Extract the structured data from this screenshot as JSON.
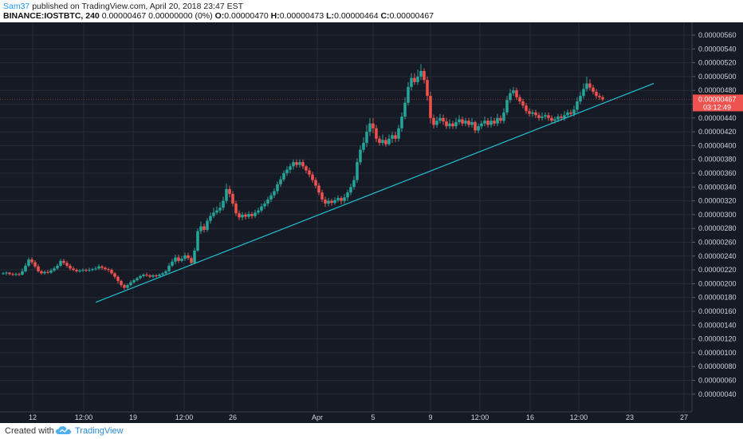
{
  "header": {
    "author": "Sam37",
    "published_text": "published on TradingView.com, April 20, 2018 23:47 EST",
    "symbol": "BINANCE:IOSTBTC, 240",
    "quote_text": "0.00000467 0.00000000 (0%)",
    "ohlc": {
      "o_label": "O:",
      "o": "0.00000470",
      "h_label": "H:",
      "h": "0.00000473",
      "l_label": "L:",
      "l": "0.00000464",
      "c_label": "C:",
      "c": "0.00000467"
    }
  },
  "footer": {
    "created_with": "Created with",
    "brand": "TradingView"
  },
  "colors": {
    "background": "#161a25",
    "up": "#26a69a",
    "down": "#ef5350",
    "trendline": "#22c4d4",
    "grid": "#252a36",
    "axis_text": "#d1d4dc",
    "price_tag": "#ef5350"
  },
  "chart_data": {
    "type": "candlestick",
    "title": "",
    "y_axis": {
      "ticks": [
        "0.00000560",
        "0.00000540",
        "0.00000520",
        "0.00000500",
        "0.00000480",
        "0.00000460",
        "0.00000440",
        "0.00000420",
        "0.00000400",
        "0.00000380",
        "0.00000360",
        "0.00000340",
        "0.00000320",
        "0.00000300",
        "0.00000280",
        "0.00000260",
        "0.00000240",
        "0.00000220",
        "0.00000200",
        "0.00000180",
        "0.00000160",
        "0.00000140",
        "0.00000120",
        "0.00000100",
        "0.00000080",
        "0.00000060",
        "0.00000040"
      ],
      "ylim": [
        3e-07,
        5.7e-06
      ]
    },
    "x_axis": {
      "ticks": [
        {
          "label": "12",
          "x": 41
        },
        {
          "label": "12:00",
          "x": 105
        },
        {
          "label": "19",
          "x": 167
        },
        {
          "label": "12:00",
          "x": 231
        },
        {
          "label": "26",
          "x": 292
        },
        {
          "label": "Apr",
          "x": 398
        },
        {
          "label": "5",
          "x": 468
        },
        {
          "label": "9",
          "x": 540
        },
        {
          "label": "12:00",
          "x": 602
        },
        {
          "label": "16",
          "x": 665
        },
        {
          "label": "12:00",
          "x": 726
        },
        {
          "label": "23",
          "x": 790
        },
        {
          "label": "27",
          "x": 858
        }
      ]
    },
    "last_price": {
      "label": "0.00000467",
      "value": 4.67e-06,
      "countdown": "03:12:49"
    },
    "candle_width": 3.5,
    "candles": [
      [
        4,
        215,
        215,
        217,
        213
      ],
      [
        8,
        215,
        216,
        218,
        212
      ],
      [
        12,
        216,
        214,
        217,
        212
      ],
      [
        16,
        214,
        213,
        216,
        211
      ],
      [
        20,
        213,
        214,
        216,
        211
      ],
      [
        24,
        214,
        213,
        216,
        211
      ],
      [
        28,
        213,
        218,
        222,
        212
      ],
      [
        32,
        218,
        226,
        230,
        216
      ],
      [
        36,
        226,
        235,
        238,
        224
      ],
      [
        40,
        235,
        231,
        238,
        228
      ],
      [
        44,
        231,
        225,
        234,
        222
      ],
      [
        48,
        225,
        218,
        228,
        216
      ],
      [
        52,
        218,
        215,
        220,
        213
      ],
      [
        56,
        215,
        217,
        219,
        213
      ],
      [
        60,
        217,
        216,
        220,
        214
      ],
      [
        64,
        216,
        219,
        222,
        214
      ],
      [
        68,
        219,
        222,
        225,
        217
      ],
      [
        72,
        222,
        226,
        229,
        220
      ],
      [
        76,
        226,
        233,
        236,
        224
      ],
      [
        80,
        233,
        230,
        236,
        227
      ],
      [
        84,
        230,
        226,
        233,
        223
      ],
      [
        88,
        226,
        222,
        229,
        219
      ],
      [
        92,
        222,
        220,
        225,
        218
      ],
      [
        96,
        220,
        218,
        222,
        216
      ],
      [
        100,
        218,
        219,
        221,
        216
      ],
      [
        104,
        219,
        220,
        222,
        217
      ],
      [
        108,
        220,
        219,
        222,
        217
      ],
      [
        112,
        219,
        220,
        223,
        217
      ],
      [
        116,
        220,
        221,
        223,
        218
      ],
      [
        120,
        221,
        222,
        225,
        219
      ],
      [
        124,
        222,
        225,
        228,
        220
      ],
      [
        128,
        225,
        223,
        227,
        220
      ],
      [
        132,
        223,
        221,
        225,
        219
      ],
      [
        136,
        221,
        220,
        223,
        217
      ],
      [
        140,
        220,
        215,
        222,
        213
      ],
      [
        144,
        215,
        210,
        217,
        207
      ],
      [
        148,
        210,
        204,
        212,
        200
      ],
      [
        152,
        204,
        198,
        206,
        195
      ],
      [
        156,
        198,
        194,
        200,
        191
      ],
      [
        160,
        194,
        198,
        200,
        192
      ],
      [
        164,
        198,
        202,
        205,
        196
      ],
      [
        168,
        202,
        205,
        207,
        200
      ],
      [
        172,
        205,
        208,
        210,
        203
      ],
      [
        176,
        208,
        211,
        213,
        206
      ],
      [
        180,
        211,
        213,
        215,
        209
      ],
      [
        184,
        213,
        212,
        216,
        210
      ],
      [
        188,
        212,
        210,
        214,
        208
      ],
      [
        192,
        210,
        212,
        214,
        208
      ],
      [
        196,
        212,
        211,
        214,
        209
      ],
      [
        200,
        211,
        213,
        215,
        210
      ],
      [
        204,
        213,
        215,
        217,
        211
      ],
      [
        208,
        215,
        218,
        220,
        213
      ],
      [
        212,
        218,
        226,
        230,
        216
      ],
      [
        216,
        226,
        232,
        236,
        224
      ],
      [
        220,
        232,
        238,
        242,
        228
      ],
      [
        224,
        238,
        233,
        242,
        230
      ],
      [
        228,
        233,
        236,
        240,
        231
      ],
      [
        232,
        236,
        241,
        245,
        233
      ],
      [
        236,
        241,
        237,
        245,
        234
      ],
      [
        240,
        237,
        230,
        240,
        226
      ],
      [
        244,
        230,
        248,
        252,
        228
      ],
      [
        248,
        248,
        276,
        280,
        246
      ],
      [
        252,
        276,
        283,
        290,
        272
      ],
      [
        256,
        283,
        278,
        287,
        274
      ],
      [
        260,
        278,
        291,
        295,
        275
      ],
      [
        264,
        291,
        298,
        303,
        287
      ],
      [
        268,
        298,
        303,
        310,
        295
      ],
      [
        272,
        303,
        306,
        312,
        300
      ],
      [
        276,
        306,
        310,
        318,
        302
      ],
      [
        280,
        310,
        320,
        326,
        306
      ],
      [
        284,
        320,
        337,
        345,
        316
      ],
      [
        288,
        337,
        330,
        342,
        325
      ],
      [
        292,
        330,
        316,
        334,
        312
      ],
      [
        296,
        316,
        302,
        320,
        298
      ],
      [
        300,
        302,
        296,
        306,
        292
      ],
      [
        304,
        296,
        300,
        304,
        292
      ],
      [
        308,
        300,
        297,
        303,
        293
      ],
      [
        312,
        297,
        301,
        305,
        294
      ],
      [
        316,
        301,
        298,
        304,
        294
      ],
      [
        320,
        298,
        303,
        307,
        295
      ],
      [
        324,
        303,
        306,
        310,
        300
      ],
      [
        328,
        306,
        312,
        316,
        303
      ],
      [
        332,
        312,
        316,
        320,
        308
      ],
      [
        336,
        316,
        322,
        326,
        312
      ],
      [
        340,
        322,
        328,
        332,
        318
      ],
      [
        344,
        328,
        334,
        338,
        324
      ],
      [
        348,
        334,
        344,
        348,
        330
      ],
      [
        352,
        344,
        351,
        356,
        340
      ],
      [
        356,
        351,
        360,
        364,
        348
      ],
      [
        360,
        360,
        365,
        370,
        356
      ],
      [
        364,
        365,
        370,
        374,
        360
      ],
      [
        368,
        370,
        376,
        380,
        365
      ],
      [
        372,
        376,
        372,
        380,
        368
      ],
      [
        376,
        372,
        376,
        380,
        368
      ],
      [
        380,
        376,
        370,
        380,
        366
      ],
      [
        384,
        370,
        364,
        372,
        360
      ],
      [
        388,
        364,
        358,
        368,
        354
      ],
      [
        392,
        358,
        350,
        362,
        346
      ],
      [
        396,
        350,
        342,
        354,
        338
      ],
      [
        400,
        342,
        332,
        346,
        328
      ],
      [
        404,
        332,
        322,
        336,
        318
      ],
      [
        408,
        322,
        316,
        326,
        311
      ],
      [
        412,
        316,
        320,
        324,
        312
      ],
      [
        416,
        320,
        317,
        323,
        313
      ],
      [
        420,
        317,
        321,
        325,
        314
      ],
      [
        424,
        321,
        324,
        328,
        318
      ],
      [
        428,
        324,
        320,
        327,
        315
      ],
      [
        432,
        320,
        325,
        330,
        316
      ],
      [
        436,
        325,
        332,
        336,
        320
      ],
      [
        440,
        332,
        340,
        345,
        328
      ],
      [
        444,
        340,
        350,
        356,
        336
      ],
      [
        448,
        350,
        376,
        382,
        346
      ],
      [
        452,
        376,
        394,
        400,
        372
      ],
      [
        456,
        394,
        404,
        412,
        390
      ],
      [
        460,
        404,
        420,
        430,
        398
      ],
      [
        464,
        420,
        432,
        440,
        414
      ],
      [
        468,
        432,
        425,
        440,
        418
      ],
      [
        472,
        425,
        410,
        430,
        405
      ],
      [
        476,
        410,
        404,
        414,
        400
      ],
      [
        480,
        404,
        408,
        416,
        400
      ],
      [
        484,
        408,
        402,
        412,
        398
      ],
      [
        488,
        402,
        410,
        416,
        400
      ],
      [
        492,
        410,
        415,
        420,
        404
      ],
      [
        496,
        415,
        410,
        420,
        405
      ],
      [
        500,
        410,
        425,
        430,
        406
      ],
      [
        504,
        425,
        442,
        448,
        420
      ],
      [
        508,
        442,
        462,
        470,
        438
      ],
      [
        512,
        462,
        485,
        492,
        458
      ],
      [
        516,
        485,
        498,
        505,
        480
      ],
      [
        520,
        498,
        492,
        505,
        488
      ],
      [
        524,
        492,
        500,
        510,
        488
      ],
      [
        528,
        500,
        508,
        518,
        495
      ],
      [
        532,
        508,
        495,
        512,
        490
      ],
      [
        536,
        495,
        472,
        500,
        465
      ],
      [
        540,
        472,
        440,
        478,
        432
      ],
      [
        544,
        440,
        430,
        445,
        425
      ],
      [
        548,
        430,
        436,
        442,
        426
      ],
      [
        552,
        436,
        440,
        446,
        432
      ],
      [
        556,
        440,
        435,
        445,
        430
      ],
      [
        560,
        435,
        428,
        440,
        424
      ],
      [
        564,
        428,
        432,
        438,
        424
      ],
      [
        568,
        432,
        428,
        436,
        424
      ],
      [
        572,
        428,
        434,
        440,
        424
      ],
      [
        576,
        434,
        438,
        444,
        430
      ],
      [
        580,
        438,
        432,
        442,
        428
      ],
      [
        584,
        432,
        436,
        440,
        428
      ],
      [
        588,
        436,
        430,
        440,
        426
      ],
      [
        592,
        430,
        434,
        440,
        426
      ],
      [
        596,
        434,
        422,
        436,
        418
      ],
      [
        600,
        422,
        428,
        432,
        418
      ],
      [
        604,
        428,
        432,
        436,
        424
      ],
      [
        608,
        432,
        436,
        442,
        428
      ],
      [
        612,
        436,
        430,
        440,
        426
      ],
      [
        616,
        430,
        436,
        442,
        426
      ],
      [
        620,
        436,
        432,
        440,
        428
      ],
      [
        624,
        432,
        440,
        446,
        428
      ],
      [
        628,
        440,
        436,
        444,
        432
      ],
      [
        632,
        436,
        448,
        454,
        432
      ],
      [
        636,
        448,
        466,
        472,
        444
      ],
      [
        640,
        466,
        476,
        482,
        462
      ],
      [
        644,
        476,
        480,
        485,
        472
      ],
      [
        648,
        480,
        470,
        484,
        466
      ],
      [
        652,
        470,
        464,
        474,
        460
      ],
      [
        656,
        464,
        458,
        468,
        454
      ],
      [
        660,
        458,
        450,
        462,
        446
      ],
      [
        664,
        450,
        446,
        454,
        442
      ],
      [
        668,
        446,
        448,
        452,
        442
      ],
      [
        672,
        448,
        444,
        452,
        440
      ],
      [
        676,
        444,
        440,
        448,
        436
      ],
      [
        680,
        440,
        442,
        448,
        436
      ],
      [
        684,
        442,
        444,
        448,
        438
      ],
      [
        688,
        444,
        440,
        448,
        436
      ],
      [
        692,
        440,
        436,
        444,
        432
      ],
      [
        696,
        436,
        438,
        442,
        432
      ],
      [
        700,
        438,
        442,
        446,
        434
      ],
      [
        704,
        442,
        440,
        446,
        436
      ],
      [
        708,
        440,
        444,
        450,
        436
      ],
      [
        712,
        444,
        448,
        452,
        440
      ],
      [
        716,
        448,
        446,
        452,
        442
      ],
      [
        720,
        446,
        452,
        458,
        442
      ],
      [
        724,
        452,
        464,
        470,
        448
      ],
      [
        728,
        464,
        472,
        478,
        460
      ],
      [
        732,
        472,
        482,
        490,
        468
      ],
      [
        736,
        482,
        490,
        500,
        478
      ],
      [
        740,
        490,
        484,
        496,
        480
      ],
      [
        744,
        484,
        478,
        488,
        474
      ],
      [
        748,
        478,
        472,
        482,
        468
      ],
      [
        752,
        472,
        470,
        476,
        466
      ],
      [
        756,
        470,
        467,
        473,
        464
      ]
    ],
    "trendline": [
      [
        1.73e-06,
        120
      ],
      [
        4.9e-06,
        820
      ]
    ]
  }
}
